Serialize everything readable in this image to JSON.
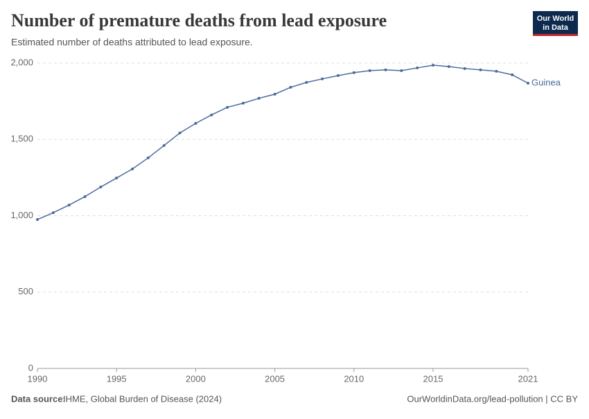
{
  "chart_data": {
    "type": "line",
    "title": "Number of premature deaths from lead exposure",
    "subtitle": "Estimated number of deaths attributed to lead exposure.",
    "logo": [
      "Our World",
      "in Data"
    ],
    "source_label": "Data source:",
    "source": "IHME, Global Burden of Disease (2024)",
    "url": "OurWorldinData.org/lead-pollution | CC BY",
    "x": [
      1990,
      1991,
      1992,
      1993,
      1994,
      1995,
      1996,
      1997,
      1998,
      1999,
      2000,
      2001,
      2002,
      2003,
      2004,
      2005,
      2006,
      2007,
      2008,
      2009,
      2010,
      2011,
      2012,
      2013,
      2014,
      2015,
      2016,
      2017,
      2018,
      2019,
      2020,
      2021
    ],
    "series": [
      {
        "name": "Guinea",
        "color": "#4c6a9c",
        "values": [
          975,
          1020,
          1070,
          1125,
          1188,
          1247,
          1306,
          1379,
          1460,
          1542,
          1605,
          1660,
          1710,
          1737,
          1769,
          1796,
          1841,
          1873,
          1896,
          1918,
          1937,
          1950,
          1955,
          1950,
          1968,
          1986,
          1977,
          1964,
          1955,
          1946,
          1923,
          1868
        ]
      }
    ],
    "xlim": [
      1990,
      2021
    ],
    "xticks": [
      1990,
      1995,
      2000,
      2005,
      2010,
      2015,
      2021
    ],
    "ylim": [
      0,
      2000
    ],
    "yticks": [
      0,
      500,
      {
        "value": 1000,
        "label": "1,000"
      },
      {
        "value": 1500,
        "label": "1,500"
      },
      {
        "value": 2000,
        "label": "2,000"
      }
    ],
    "grid": true
  }
}
